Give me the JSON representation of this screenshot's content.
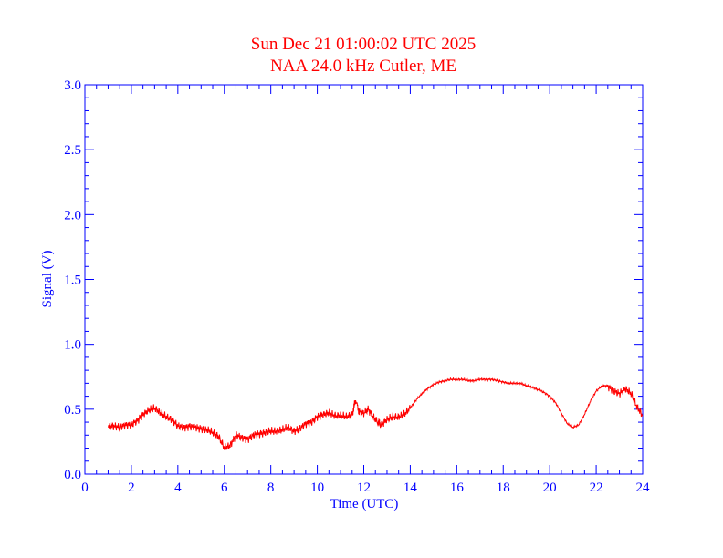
{
  "chart_data": {
    "type": "line",
    "title": "Sun Dec 21 01:00:02 UTC 2025",
    "subtitle": "NAA 24.0 kHz Cutler, ME",
    "xlabel": "Time (UTC)",
    "ylabel": "Signal (V)",
    "xlim": [
      0,
      24
    ],
    "ylim": [
      0,
      3.0
    ],
    "x_ticks": [
      "0",
      "2",
      "4",
      "6",
      "8",
      "10",
      "12",
      "14",
      "16",
      "18",
      "20",
      "22",
      "24"
    ],
    "y_ticks": [
      "0.0",
      "0.5",
      "1.0",
      "1.5",
      "2.0",
      "2.5",
      "3.0"
    ],
    "grid": false,
    "colors": {
      "axis": "#0000ff",
      "title": "#ff0000",
      "series": "#ff0000"
    },
    "series": [
      {
        "x": [
          1.0,
          1.25,
          1.5,
          1.75,
          2.0,
          2.25,
          2.5,
          2.75,
          3.0,
          3.25,
          3.5,
          3.75,
          4.0,
          4.25,
          4.5,
          4.75,
          5.0,
          5.25,
          5.5,
          5.75,
          6.0,
          6.25,
          6.5,
          6.75,
          7.0,
          7.25,
          7.5,
          7.75,
          8.0,
          8.25,
          8.5,
          8.75,
          9.0,
          9.25,
          9.5,
          9.75,
          10.0,
          10.25,
          10.5,
          10.75,
          11.0,
          11.25,
          11.5,
          11.65,
          11.8,
          12.0,
          12.2,
          12.4,
          12.6,
          12.75,
          13.0,
          13.25,
          13.5,
          13.75,
          14.0,
          14.25,
          14.5,
          14.75,
          15.0,
          15.25,
          15.5,
          15.75,
          16.0,
          16.25,
          16.5,
          16.75,
          17.0,
          17.25,
          17.5,
          17.75,
          18.0,
          18.25,
          18.5,
          18.75,
          19.0,
          19.25,
          19.5,
          19.75,
          20.0,
          20.25,
          20.5,
          20.75,
          21.0,
          21.25,
          21.5,
          21.75,
          22.0,
          22.25,
          22.5,
          22.75,
          23.0,
          23.25,
          23.5,
          23.75,
          24.0
        ],
        "y": [
          0.37,
          0.37,
          0.36,
          0.38,
          0.38,
          0.41,
          0.46,
          0.49,
          0.51,
          0.47,
          0.44,
          0.42,
          0.37,
          0.36,
          0.37,
          0.36,
          0.35,
          0.34,
          0.32,
          0.29,
          0.2,
          0.22,
          0.3,
          0.28,
          0.27,
          0.3,
          0.31,
          0.32,
          0.33,
          0.33,
          0.34,
          0.36,
          0.33,
          0.35,
          0.39,
          0.4,
          0.44,
          0.46,
          0.47,
          0.45,
          0.45,
          0.44,
          0.46,
          0.57,
          0.48,
          0.47,
          0.5,
          0.44,
          0.4,
          0.38,
          0.42,
          0.44,
          0.44,
          0.46,
          0.51,
          0.57,
          0.62,
          0.66,
          0.69,
          0.71,
          0.72,
          0.73,
          0.73,
          0.73,
          0.72,
          0.72,
          0.73,
          0.73,
          0.73,
          0.72,
          0.71,
          0.7,
          0.7,
          0.7,
          0.68,
          0.67,
          0.65,
          0.63,
          0.6,
          0.55,
          0.47,
          0.39,
          0.36,
          0.38,
          0.46,
          0.56,
          0.64,
          0.68,
          0.68,
          0.64,
          0.62,
          0.66,
          0.62,
          0.52,
          0.45
        ]
      }
    ]
  }
}
